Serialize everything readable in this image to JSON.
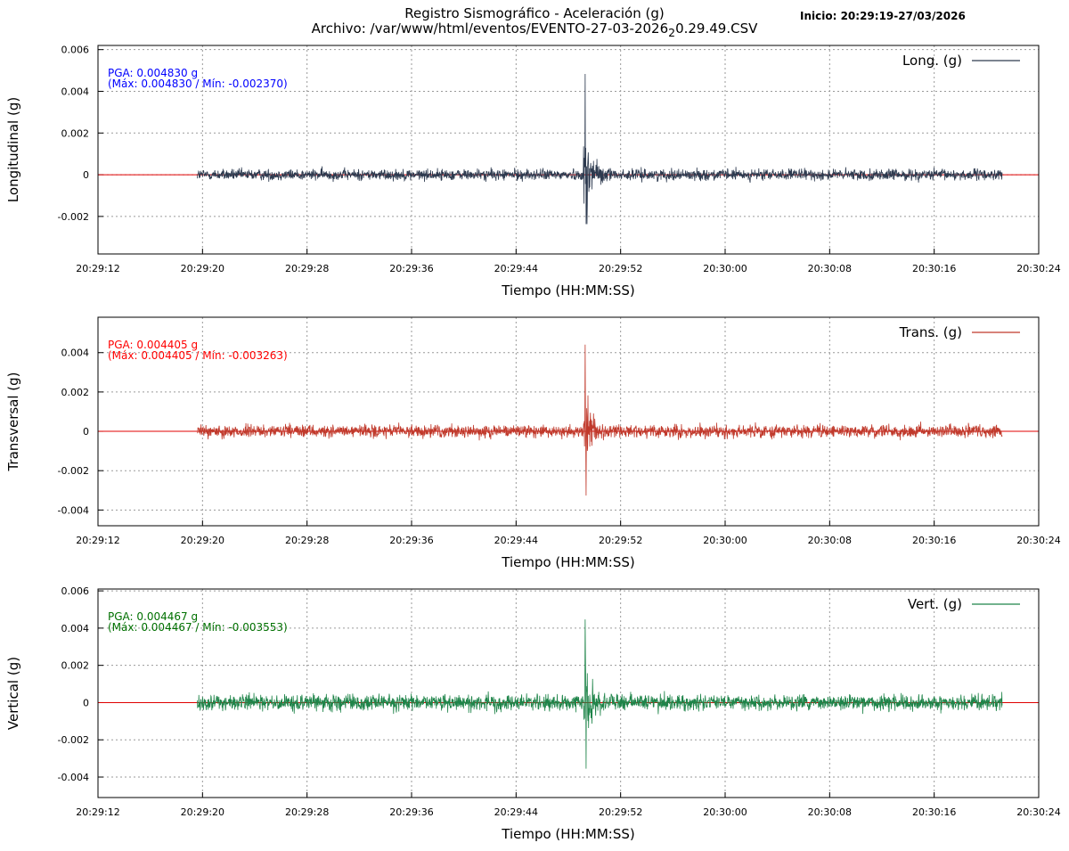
{
  "header": {
    "title": "Registro Sismográfico - Aceleración (g)",
    "file_prefix": "Archivo: /var/www/html/eventos/EVENTO-27-03-2026",
    "file_sub": "2",
    "file_suffix": "0.29.49.CSV",
    "inicio": "Inicio: 20:29:19-27/03/2026"
  },
  "colors": {
    "long": "#2d3a4f",
    "trans": "#c0392b",
    "vert": "#1e8449",
    "zero_line": "#e00000",
    "grid": "#9a9a9a"
  },
  "chart_data": [
    {
      "type": "line",
      "ylabel": "Longitudinal (g)",
      "xlabel": "Tiempo (HH:MM:SS)",
      "legend": "Long. (g)",
      "legend_position": "top-right",
      "pga_text": "PGA: 0.004830 g",
      "range_text": "(Máx: 0.004830 / Mín: -0.002370)",
      "annotation_color": "#0000ff",
      "series_color": "#2d3a4f",
      "ylim": [
        -0.0038,
        0.0062
      ],
      "yticks": [
        "0.006",
        "0.004",
        "0.002",
        "0",
        "-0.002"
      ],
      "ytick_values": [
        0.006,
        0.004,
        0.002,
        0,
        -0.002
      ],
      "xlim_seconds_after_20_29_12": [
        0,
        72
      ],
      "xticks": [
        "20:29:12",
        "20:29:20",
        "20:29:28",
        "20:29:36",
        "20:29:44",
        "20:29:52",
        "20:30:00",
        "20:30:08",
        "20:30:16",
        "20:30:24"
      ],
      "grid": true,
      "signal_start": "20:29:19",
      "signal_end": "20:30:21",
      "event_time": "20:29:49",
      "noise_amplitude": 0.0005,
      "peak_max": 0.00483,
      "peak_min": -0.00237
    },
    {
      "type": "line",
      "ylabel": "Transversal (g)",
      "xlabel": "Tiempo (HH:MM:SS)",
      "legend": "Trans. (g)",
      "legend_position": "top-right",
      "pga_text": "PGA: 0.004405 g",
      "range_text": "(Máx: 0.004405 / Mín: -0.003263)",
      "annotation_color": "#ff0000",
      "series_color": "#c0392b",
      "ylim": [
        -0.0048,
        0.0058
      ],
      "yticks": [
        "0.004",
        "0.002",
        "0",
        "-0.002",
        "-0.004"
      ],
      "ytick_values": [
        0.004,
        0.002,
        0,
        -0.002,
        -0.004
      ],
      "xlim_seconds_after_20_29_12": [
        0,
        72
      ],
      "xticks": [
        "20:29:12",
        "20:29:20",
        "20:29:28",
        "20:29:36",
        "20:29:44",
        "20:29:52",
        "20:30:00",
        "20:30:08",
        "20:30:16",
        "20:30:24"
      ],
      "grid": true,
      "signal_start": "20:29:19",
      "signal_end": "20:30:21",
      "event_time": "20:29:49",
      "noise_amplitude": 0.0006,
      "peak_max": 0.004405,
      "peak_min": -0.003263
    },
    {
      "type": "line",
      "ylabel": "Vertical (g)",
      "xlabel": "Tiempo (HH:MM:SS)",
      "legend": "Vert. (g)",
      "legend_position": "top-right",
      "pga_text": "PGA: 0.004467 g",
      "range_text": "(Máx: 0.004467 / Mín: -0.003553)",
      "annotation_color": "#007000",
      "series_color": "#1e8449",
      "ylim": [
        -0.0051,
        0.0061
      ],
      "yticks": [
        "0.006",
        "0.004",
        "0.002",
        "0",
        "-0.002",
        "-0.004"
      ],
      "ytick_values": [
        0.006,
        0.004,
        0.002,
        0,
        -0.002,
        -0.004
      ],
      "xlim_seconds_after_20_29_12": [
        0,
        72
      ],
      "xticks": [
        "20:29:12",
        "20:29:20",
        "20:29:28",
        "20:29:36",
        "20:29:44",
        "20:29:52",
        "20:30:00",
        "20:30:08",
        "20:30:16",
        "20:30:24"
      ],
      "grid": true,
      "signal_start": "20:29:19",
      "signal_end": "20:30:21",
      "event_time": "20:29:49",
      "noise_amplitude": 0.0008,
      "peak_max": 0.004467,
      "peak_min": -0.003553
    }
  ]
}
